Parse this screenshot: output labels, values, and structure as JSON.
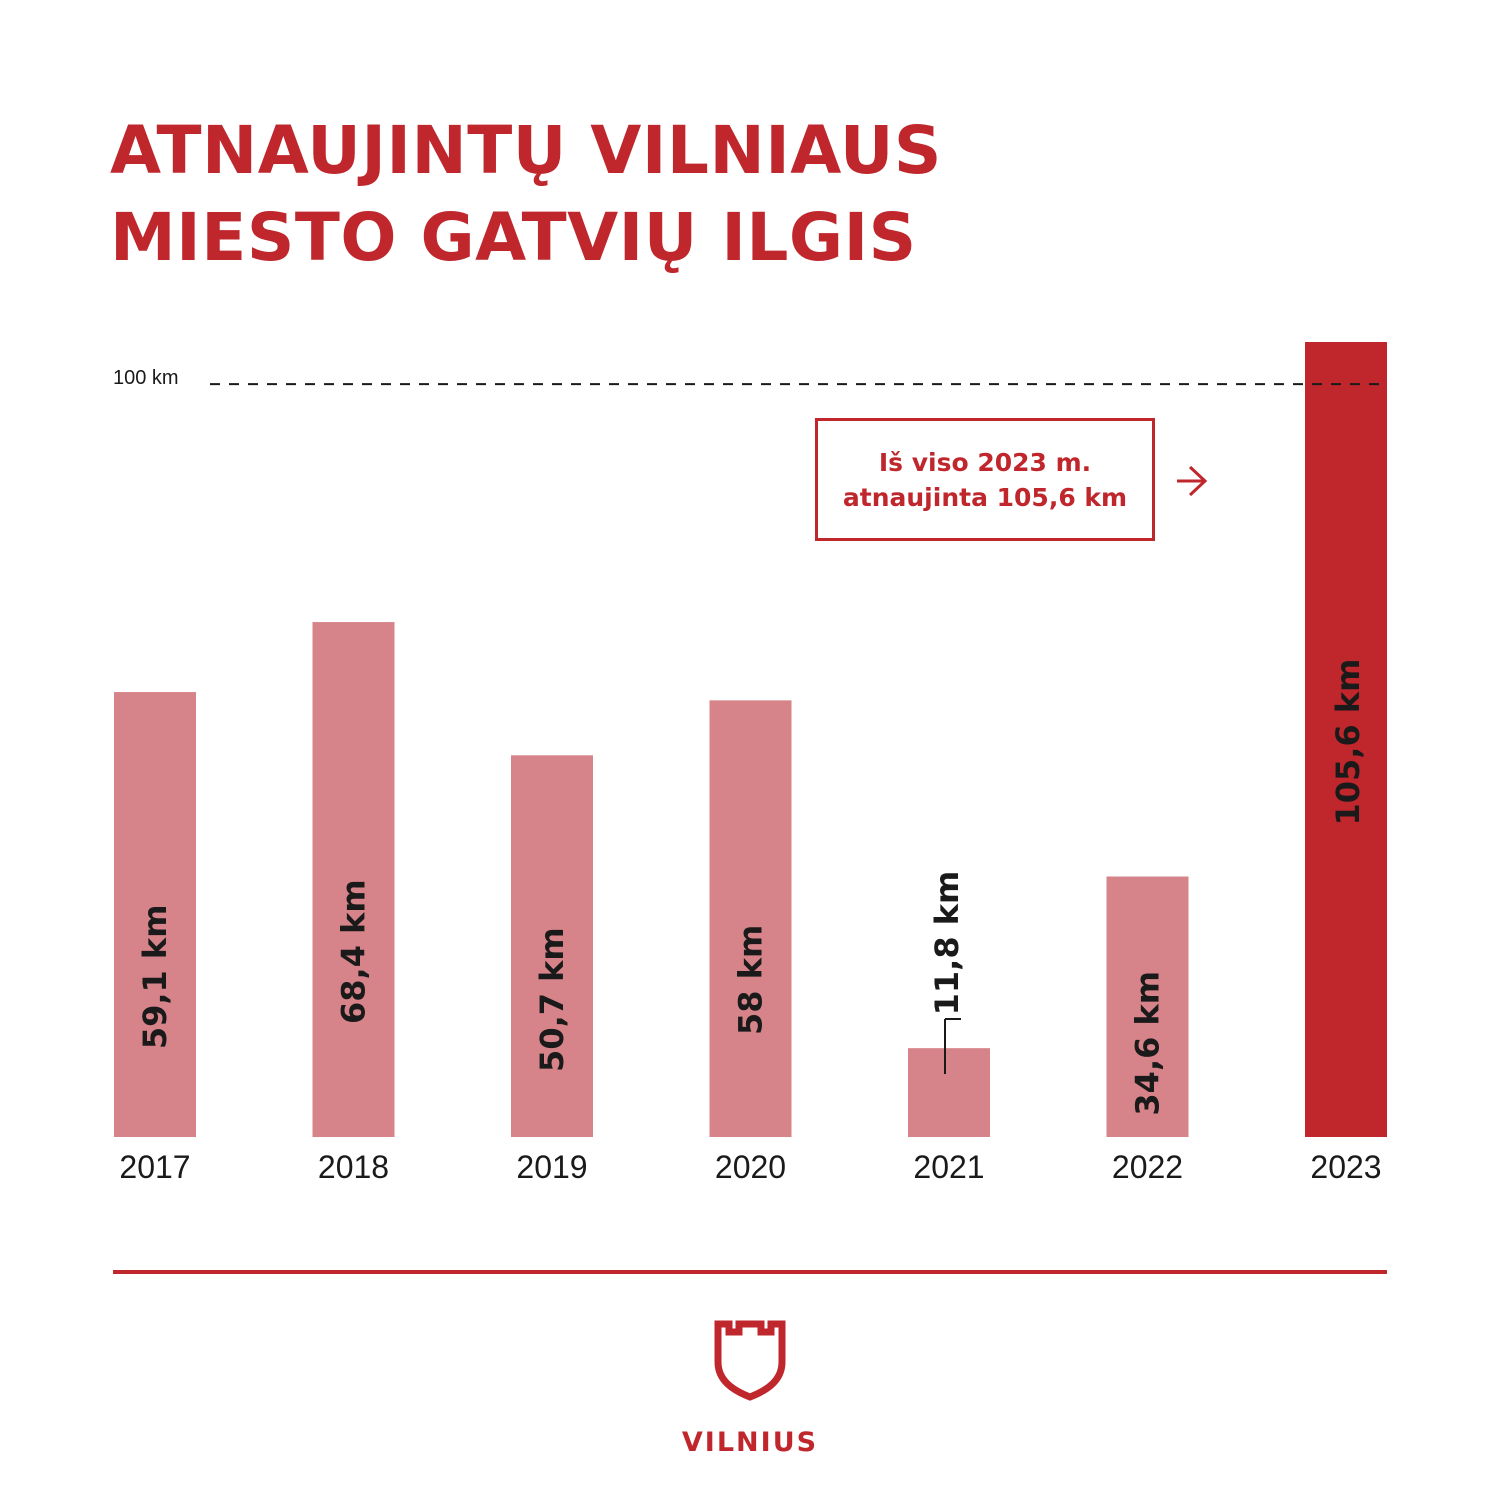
{
  "title": {
    "line1": "ATNAUJINTŲ VILNIAUS",
    "line2": "MIESTO GATVIŲ ILGIS"
  },
  "reference": {
    "label": "100 km",
    "value": 100
  },
  "callout": {
    "line1": "Iš viso 2023 m.",
    "line2": "atnaujinta 105,6 km"
  },
  "brand": {
    "name": "VILNIUS",
    "logo_icon": "tower-shield-icon"
  },
  "colors": {
    "accent": "#c0272d",
    "bar": "#d6848a",
    "bar_highlight": "#c0272d",
    "text": "#1a1a1a"
  },
  "chart_data": {
    "type": "bar",
    "title": "ATNAUJINTŲ VILNIAUS MIESTO GATVIŲ ILGIS",
    "unit": "km",
    "categories": [
      "2017",
      "2018",
      "2019",
      "2020",
      "2021",
      "2022",
      "2023"
    ],
    "values": [
      59.1,
      68.4,
      50.7,
      58,
      11.8,
      34.6,
      105.6
    ],
    "data_labels": [
      "59,1 km",
      "68,4 km",
      "50,7 km",
      "58 km",
      "11,8 km",
      "34,6 km",
      "105,6 km"
    ],
    "highlight": "2023",
    "reference_line": 100,
    "ylim": [
      0,
      105.6
    ],
    "grid": false,
    "legend": "none"
  }
}
